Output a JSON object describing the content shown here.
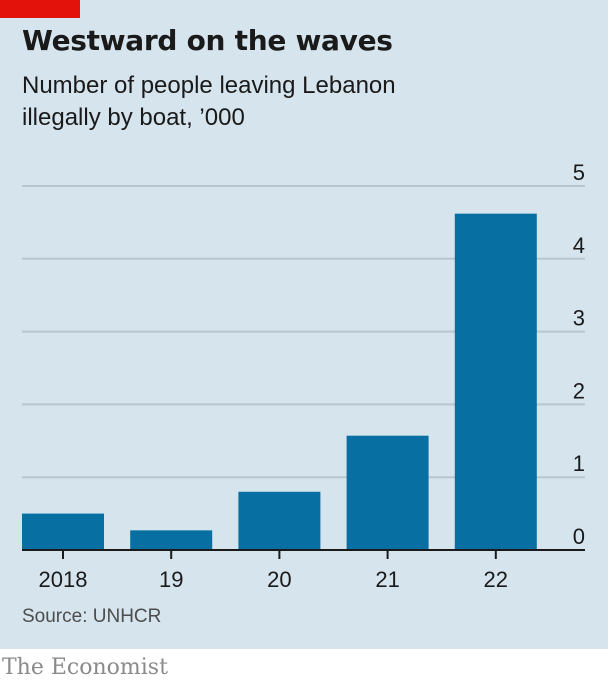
{
  "colors": {
    "panel_background": "#d6e4ee",
    "accent": "#e3120b",
    "bar": "#076fa1",
    "gridline": "#b7c6cf",
    "axis": "#1a1a1a"
  },
  "source": "Source: UNHCR",
  "brand": "The Economist",
  "chart_data": {
    "type": "bar",
    "title": "Westward on the waves",
    "subtitle": "Number of people leaving Lebanon illegally by boat, ’000",
    "categories": [
      "2018",
      "19",
      "20",
      "21",
      "22"
    ],
    "values": [
      0.5,
      0.27,
      0.8,
      1.57,
      4.62
    ],
    "ylim": [
      0,
      5
    ],
    "yticks": [
      "0",
      "1",
      "2",
      "3",
      "4",
      "5"
    ],
    "y_axis_position": "right",
    "grid": true,
    "legend": "none"
  }
}
